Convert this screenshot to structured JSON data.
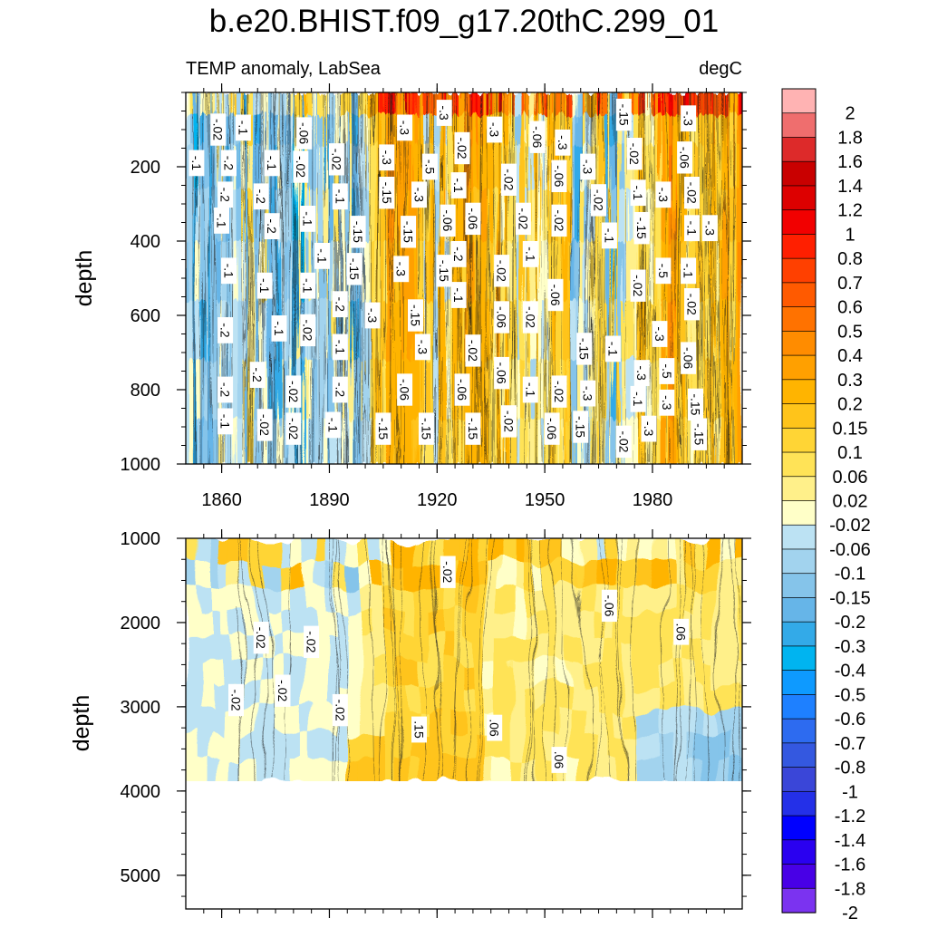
{
  "chart_data": [
    {
      "type": "heatmap",
      "title": "b.e20.BHIST.f09_g17.20thC.299_01",
      "left_string": "TEMP anomaly, LabSea",
      "right_string": "degC",
      "ylabel": "depth",
      "xlabel": "",
      "xlim": [
        1850,
        2005
      ],
      "ylim": [
        1000,
        0
      ],
      "x_ticks": [
        1860,
        1890,
        1920,
        1950,
        1980
      ],
      "y_ticks": [
        200,
        400,
        600,
        800,
        1000
      ],
      "x_period": [
        1920,
        1950
      ],
      "grid": false,
      "contour_labels": [
        {
          "x": 1859,
          "y": 100,
          "text": "-.02"
        },
        {
          "x": 1866,
          "y": 95,
          "text": "-.1"
        },
        {
          "x": 1883,
          "y": 110,
          "text": "-.06"
        },
        {
          "x": 1853,
          "y": 190,
          "text": "-.1"
        },
        {
          "x": 1862,
          "y": 190,
          "text": "-.2"
        },
        {
          "x": 1874,
          "y": 190,
          "text": "-.1"
        },
        {
          "x": 1882,
          "y": 200,
          "text": "-.02"
        },
        {
          "x": 1892,
          "y": 180,
          "text": "-.02"
        },
        {
          "x": 1911,
          "y": 95,
          "text": "-.3"
        },
        {
          "x": 1922,
          "y": 55,
          "text": "-.3"
        },
        {
          "x": 1936,
          "y": 100,
          "text": "-.3"
        },
        {
          "x": 1948,
          "y": 120,
          "text": "-.06"
        },
        {
          "x": 1955,
          "y": 135,
          "text": "-.3"
        },
        {
          "x": 1972,
          "y": 60,
          "text": "-.15"
        },
        {
          "x": 1990,
          "y": 70,
          "text": "-.3"
        },
        {
          "x": 1906,
          "y": 175,
          "text": "-.3"
        },
        {
          "x": 1918,
          "y": 200,
          "text": "-.5"
        },
        {
          "x": 1927,
          "y": 150,
          "text": "-.02"
        },
        {
          "x": 1962,
          "y": 200,
          "text": "-.3"
        },
        {
          "x": 1975,
          "y": 165,
          "text": "-.02"
        },
        {
          "x": 1989,
          "y": 175,
          "text": "-.06"
        },
        {
          "x": 1861,
          "y": 275,
          "text": "-.2"
        },
        {
          "x": 1871,
          "y": 280,
          "text": "-.2"
        },
        {
          "x": 1893,
          "y": 280,
          "text": "-.1"
        },
        {
          "x": 1906,
          "y": 270,
          "text": "-.15"
        },
        {
          "x": 1915,
          "y": 275,
          "text": "-.3"
        },
        {
          "x": 1926,
          "y": 250,
          "text": "-.1"
        },
        {
          "x": 1940,
          "y": 235,
          "text": "-.02"
        },
        {
          "x": 1954,
          "y": 225,
          "text": "-.06"
        },
        {
          "x": 1965,
          "y": 290,
          "text": "-.02"
        },
        {
          "x": 1976,
          "y": 270,
          "text": "-.1"
        },
        {
          "x": 1983,
          "y": 275,
          "text": "-.3"
        },
        {
          "x": 1991,
          "y": 270,
          "text": "-.02"
        },
        {
          "x": 1860,
          "y": 345,
          "text": "-.1"
        },
        {
          "x": 1874,
          "y": 360,
          "text": "-.2"
        },
        {
          "x": 1884,
          "y": 340,
          "text": "-.1"
        },
        {
          "x": 1898,
          "y": 375,
          "text": "-.15"
        },
        {
          "x": 1912,
          "y": 375,
          "text": "-.15"
        },
        {
          "x": 1923,
          "y": 345,
          "text": "-.06"
        },
        {
          "x": 1930,
          "y": 340,
          "text": "-.06"
        },
        {
          "x": 1944,
          "y": 340,
          "text": "-.02"
        },
        {
          "x": 1954,
          "y": 345,
          "text": "-.02"
        },
        {
          "x": 1968,
          "y": 385,
          "text": "-.1"
        },
        {
          "x": 1977,
          "y": 365,
          "text": "-.15"
        },
        {
          "x": 1991,
          "y": 365,
          "text": "-.1"
        },
        {
          "x": 1996,
          "y": 365,
          "text": "-.3"
        },
        {
          "x": 1862,
          "y": 480,
          "text": "-.1"
        },
        {
          "x": 1888,
          "y": 440,
          "text": "-.1"
        },
        {
          "x": 1897,
          "y": 475,
          "text": "-.15"
        },
        {
          "x": 1910,
          "y": 475,
          "text": "-.3"
        },
        {
          "x": 1922,
          "y": 480,
          "text": "-.15"
        },
        {
          "x": 1926,
          "y": 435,
          "text": "-.2"
        },
        {
          "x": 1938,
          "y": 480,
          "text": "-.02"
        },
        {
          "x": 1946,
          "y": 435,
          "text": "-.1"
        },
        {
          "x": 1983,
          "y": 480,
          "text": "-.5"
        },
        {
          "x": 1990,
          "y": 480,
          "text": "-.1"
        },
        {
          "x": 1872,
          "y": 520,
          "text": "-.1"
        },
        {
          "x": 1884,
          "y": 520,
          "text": "-.1"
        },
        {
          "x": 1893,
          "y": 570,
          "text": "-.2"
        },
        {
          "x": 1926,
          "y": 545,
          "text": "-.1"
        },
        {
          "x": 1953,
          "y": 545,
          "text": "-.06"
        },
        {
          "x": 1976,
          "y": 520,
          "text": "-.02"
        },
        {
          "x": 1991,
          "y": 570,
          "text": "-.02"
        },
        {
          "x": 1861,
          "y": 640,
          "text": "-.2"
        },
        {
          "x": 1876,
          "y": 635,
          "text": "-.1"
        },
        {
          "x": 1884,
          "y": 640,
          "text": "-.02"
        },
        {
          "x": 1902,
          "y": 600,
          "text": "-.3"
        },
        {
          "x": 1914,
          "y": 600,
          "text": "-.15"
        },
        {
          "x": 1938,
          "y": 605,
          "text": "-.06"
        },
        {
          "x": 1946,
          "y": 605,
          "text": "-.02"
        },
        {
          "x": 1930,
          "y": 695,
          "text": "-.02"
        },
        {
          "x": 1916,
          "y": 685,
          "text": "-.3"
        },
        {
          "x": 1893,
          "y": 685,
          "text": "-.1"
        },
        {
          "x": 1961,
          "y": 690,
          "text": "-.15"
        },
        {
          "x": 1969,
          "y": 690,
          "text": "-.1"
        },
        {
          "x": 1982,
          "y": 650,
          "text": "-.3"
        },
        {
          "x": 1990,
          "y": 715,
          "text": "-.06"
        },
        {
          "x": 1870,
          "y": 760,
          "text": "-.2"
        },
        {
          "x": 1938,
          "y": 755,
          "text": "-.06"
        },
        {
          "x": 1977,
          "y": 755,
          "text": "-.3"
        },
        {
          "x": 1984,
          "y": 750,
          "text": "-.5"
        },
        {
          "x": 1861,
          "y": 800,
          "text": "-.2"
        },
        {
          "x": 1880,
          "y": 805,
          "text": "-.02"
        },
        {
          "x": 1893,
          "y": 800,
          "text": "-.2"
        },
        {
          "x": 1911,
          "y": 800,
          "text": "-.06"
        },
        {
          "x": 1927,
          "y": 800,
          "text": "-.06"
        },
        {
          "x": 1946,
          "y": 800,
          "text": "-.1"
        },
        {
          "x": 1954,
          "y": 805,
          "text": "-.02"
        },
        {
          "x": 1962,
          "y": 810,
          "text": "-.3"
        },
        {
          "x": 1976,
          "y": 825,
          "text": "-.1"
        },
        {
          "x": 1984,
          "y": 835,
          "text": "-.3"
        },
        {
          "x": 1992,
          "y": 840,
          "text": "-.15"
        },
        {
          "x": 1861,
          "y": 885,
          "text": "-.1"
        },
        {
          "x": 1872,
          "y": 895,
          "text": "-.02"
        },
        {
          "x": 1880,
          "y": 905,
          "text": "-.02"
        },
        {
          "x": 1891,
          "y": 895,
          "text": "-.1"
        },
        {
          "x": 1905,
          "y": 905,
          "text": "-.15"
        },
        {
          "x": 1917,
          "y": 905,
          "text": "-.15"
        },
        {
          "x": 1930,
          "y": 905,
          "text": "-.15"
        },
        {
          "x": 1940,
          "y": 885,
          "text": "-.02"
        },
        {
          "x": 1952,
          "y": 905,
          "text": "-.06"
        },
        {
          "x": 1960,
          "y": 900,
          "text": "-.15"
        },
        {
          "x": 1972,
          "y": 940,
          "text": "-.02"
        },
        {
          "x": 1979,
          "y": 905,
          "text": "-.3"
        },
        {
          "x": 1993,
          "y": 920,
          "text": "-.15"
        }
      ]
    },
    {
      "type": "heatmap",
      "ylabel": "depth",
      "xlabel": "",
      "xlim": [
        1850,
        2005
      ],
      "ylim": [
        5400,
        1000
      ],
      "y_ticks": [
        1000,
        2000,
        3000,
        4000,
        5000
      ],
      "data_floor_depth": 3900,
      "grid": false,
      "contour_labels": [
        {
          "x": 1923,
          "y": 1400,
          "text": "-.02"
        },
        {
          "x": 1968,
          "y": 1800,
          "text": "-.06"
        },
        {
          "x": 1988,
          "y": 2110,
          "text": ".06"
        },
        {
          "x": 1871,
          "y": 2180,
          "text": "-.02"
        },
        {
          "x": 1885,
          "y": 2230,
          "text": "-.02"
        },
        {
          "x": 1864,
          "y": 2920,
          "text": "-.02"
        },
        {
          "x": 1877,
          "y": 2810,
          "text": "-.02"
        },
        {
          "x": 1893,
          "y": 3040,
          "text": "-.02"
        },
        {
          "x": 1915,
          "y": 3270,
          "text": ".15"
        },
        {
          "x": 1936,
          "y": 3250,
          "text": ".06"
        },
        {
          "x": 1954,
          "y": 3630,
          "text": ".06"
        }
      ]
    }
  ],
  "colorbar": {
    "levels": [
      "2",
      "1.8",
      "1.6",
      "1.4",
      "1.2",
      "1",
      "0.8",
      "0.7",
      "0.6",
      "0.5",
      "0.4",
      "0.3",
      "0.2",
      "0.15",
      "0.1",
      "0.06",
      "0.02",
      "-0.02",
      "-0.06",
      "-0.1",
      "-0.15",
      "-0.2",
      "-0.3",
      "-0.4",
      "-0.5",
      "-0.6",
      "-0.7",
      "-0.8",
      "-1",
      "-1.2",
      "-1.4",
      "-1.6",
      "-1.8",
      "-2"
    ],
    "colors": [
      "#ffb3b3",
      "#ef6e6e",
      "#dd2a2a",
      "#c90000",
      "#dd0000",
      "#f20000",
      "#ff1f00",
      "#ff4000",
      "#ff5a00",
      "#ff7200",
      "#ff8c00",
      "#ffa000",
      "#ffb400",
      "#ffc41a",
      "#ffd535",
      "#ffe357",
      "#fff08a",
      "#ffffc8",
      "#bce2f3",
      "#a2d3ee",
      "#85c4ea",
      "#66b5e8",
      "#33aae8",
      "#00b4f0",
      "#0e9aff",
      "#1e80ff",
      "#2d6bf0",
      "#3458e0",
      "#3a46d8",
      "#2430e8",
      "#0000ff",
      "#2a00f0",
      "#4800e6",
      "#7b33f0"
    ]
  }
}
